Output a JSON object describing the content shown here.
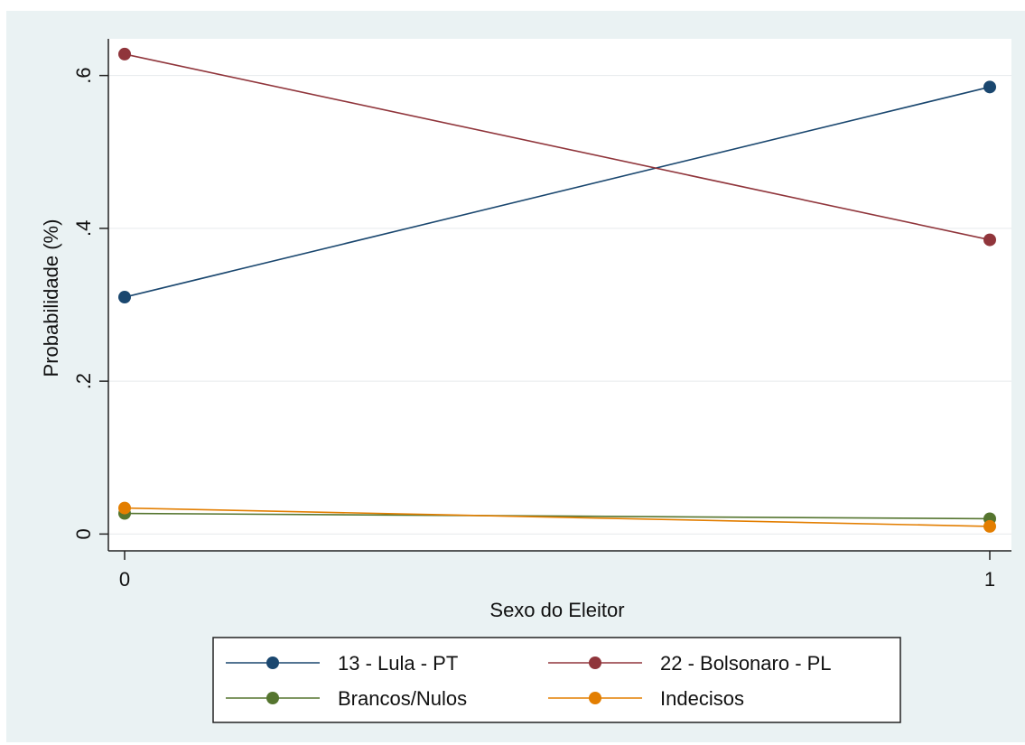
{
  "chart_data": {
    "type": "line",
    "title": "",
    "xlabel": "Sexo do Eleitor",
    "ylabel": "Probabilidade (%)",
    "x": [
      0,
      1
    ],
    "x_tick_labels": [
      "0",
      "1"
    ],
    "ylim": [
      -0.022,
      0.648
    ],
    "y_ticks": [
      0,
      0.2,
      0.4,
      0.6
    ],
    "y_tick_labels": [
      "0",
      ".2",
      ".4",
      ".6"
    ],
    "grid": true,
    "legend_position": "bottom",
    "series": [
      {
        "name": "13 - Lula - PT",
        "values": [
          0.31,
          0.585
        ],
        "color": "#1a476f"
      },
      {
        "name": "22 - Bolsonaro - PL",
        "values": [
          0.628,
          0.385
        ],
        "color": "#90353b"
      },
      {
        "name": "Brancos/Nulos",
        "values": [
          0.027,
          0.02
        ],
        "color": "#55752f"
      },
      {
        "name": "Indecisos",
        "values": [
          0.034,
          0.01
        ],
        "color": "#e37e00"
      }
    ]
  }
}
